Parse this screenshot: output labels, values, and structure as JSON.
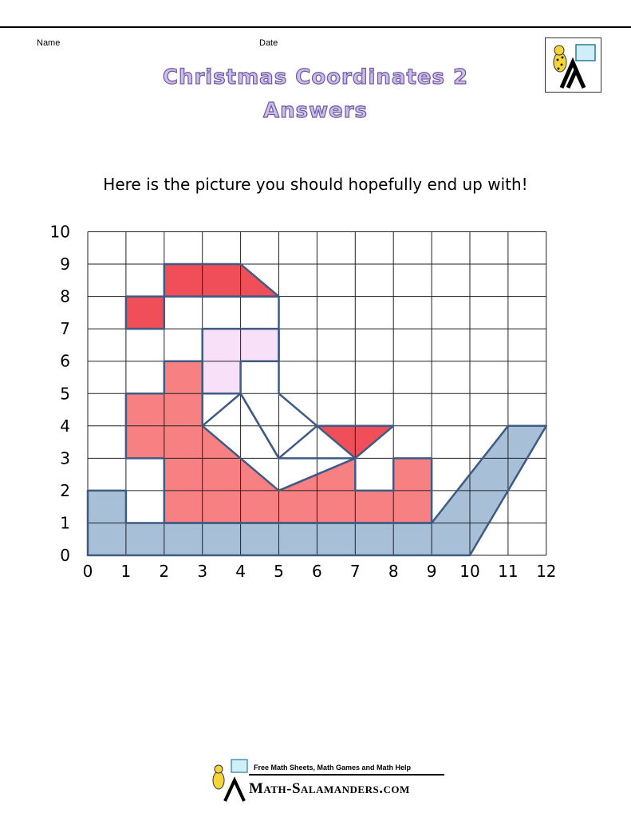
{
  "header": {
    "name_label": "Name",
    "date_label": "Date",
    "title_line1": "Christmas Coordinates 2",
    "title_line2": "Answers"
  },
  "instruction": "Here is the picture you should hopefully end up with!",
  "grid": {
    "x_max": 12,
    "y_max": 10,
    "x_ticks": [
      "0",
      "1",
      "2",
      "3",
      "4",
      "5",
      "6",
      "7",
      "8",
      "9",
      "10",
      "11",
      "12"
    ],
    "y_ticks": [
      "0",
      "1",
      "2",
      "3",
      "4",
      "5",
      "6",
      "7",
      "8",
      "9",
      "10"
    ],
    "shapes": [
      {
        "name": "sleigh-base",
        "fill": "#a7c0d8",
        "points": [
          [
            0,
            0
          ],
          [
            0,
            2
          ],
          [
            1,
            2
          ],
          [
            1,
            1
          ],
          [
            9,
            1
          ],
          [
            11,
            4
          ],
          [
            12,
            4
          ],
          [
            10,
            0
          ]
        ]
      },
      {
        "name": "santa-body",
        "fill": "#f68082",
        "points": [
          [
            1,
            5
          ],
          [
            2,
            5
          ],
          [
            2,
            6
          ],
          [
            3,
            6
          ],
          [
            3,
            4
          ],
          [
            5,
            2
          ],
          [
            7,
            3
          ],
          [
            7,
            2
          ],
          [
            8,
            2
          ],
          [
            8,
            3
          ],
          [
            9,
            3
          ],
          [
            9,
            1
          ],
          [
            2,
            1
          ],
          [
            2,
            3
          ],
          [
            1,
            3
          ]
        ]
      },
      {
        "name": "santa-hat",
        "fill": "#f04e58",
        "points": [
          [
            2,
            9
          ],
          [
            4,
            9
          ],
          [
            5,
            8
          ],
          [
            2,
            8
          ]
        ]
      },
      {
        "name": "hat-bobble",
        "fill": "#f04e58",
        "points": [
          [
            1,
            8
          ],
          [
            2,
            8
          ],
          [
            2,
            7
          ],
          [
            1,
            7
          ]
        ]
      },
      {
        "name": "santa-face",
        "fill": "#f7e0f8",
        "points": [
          [
            3,
            7
          ],
          [
            5,
            7
          ],
          [
            5,
            6
          ],
          [
            4,
            6
          ],
          [
            4,
            5
          ],
          [
            3,
            5
          ]
        ]
      },
      {
        "name": "bow-triangle",
        "fill": "#f04e58",
        "points": [
          [
            6,
            4
          ],
          [
            8,
            4
          ],
          [
            7,
            3
          ]
        ]
      },
      {
        "name": "beard-outline",
        "fill": "none",
        "points": [
          [
            3,
            8
          ],
          [
            5,
            8
          ],
          [
            5,
            5
          ],
          [
            6,
            4
          ],
          [
            5,
            3
          ],
          [
            4,
            5
          ],
          [
            3,
            5
          ]
        ]
      },
      {
        "name": "arm-outline",
        "fill": "none",
        "points": [
          [
            3,
            4
          ],
          [
            4,
            5
          ],
          [
            5,
            3
          ],
          [
            7,
            3
          ],
          [
            5,
            2
          ]
        ]
      }
    ]
  },
  "footer": {
    "tagline": "Free Math Sheets, Math Games and Math Help",
    "brand": "Math-Salamanders.com"
  },
  "colors": {
    "title_fill": "#cdbaf0",
    "title_stroke": "#6e5a99",
    "outline": "#3f5b84"
  }
}
